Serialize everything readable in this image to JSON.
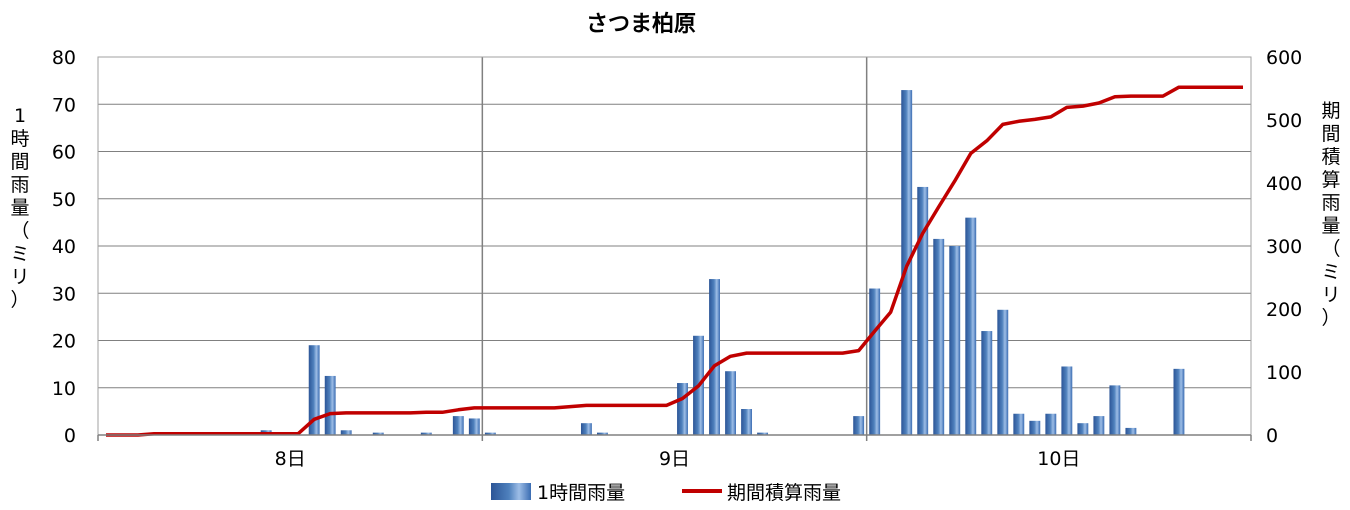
{
  "chart_data": {
    "type": "bar+line",
    "title": "さつま柏原",
    "ylabel_left": [
      "1",
      "時",
      "間",
      "雨",
      "量",
      "（",
      "ミ",
      "リ",
      "）"
    ],
    "ylabel_right": [
      "期",
      "間",
      "積",
      "算",
      "雨",
      "量",
      "（",
      "ミ",
      "リ",
      "）"
    ],
    "ylim_left": [
      0,
      80
    ],
    "ylim_right": [
      0,
      600
    ],
    "yticks_left": [
      "0",
      "10",
      "20",
      "30",
      "40",
      "50",
      "60",
      "70",
      "80"
    ],
    "yticks_right": [
      "0",
      "100",
      "200",
      "300",
      "400",
      "500",
      "600"
    ],
    "x_day_labels": [
      "8日",
      "9日",
      "10日"
    ],
    "hours_per_day": 24,
    "grid": true,
    "legend_position": "bottom",
    "colors": {
      "bar": "#4f81bd",
      "line": "#c00000",
      "grid": "#808080"
    },
    "series": [
      {
        "name": "1時間雨量",
        "type": "bar",
        "values": [
          0,
          0,
          0,
          0,
          0,
          0,
          0,
          0,
          0,
          0,
          1,
          0,
          0,
          19,
          12.5,
          1,
          0,
          0.5,
          0,
          0,
          0.5,
          0,
          4,
          3.5,
          0.5,
          0,
          0,
          0,
          0,
          0,
          2.5,
          0.5,
          0,
          0,
          0,
          0,
          11,
          21,
          33,
          13.5,
          5.5,
          0.5,
          0,
          0,
          0,
          0,
          0,
          4,
          31,
          0,
          73,
          52.5,
          41.5,
          40,
          46,
          22,
          26.5,
          4.5,
          3,
          4.5,
          14.5,
          2.5,
          4,
          10.5,
          1.5,
          0,
          0,
          14,
          0,
          0,
          0,
          0
        ]
      },
      {
        "name": "期間積算雨量",
        "type": "line",
        "values": [
          0,
          0,
          0,
          2,
          2,
          2,
          2,
          2,
          2,
          2,
          2,
          2,
          2,
          25,
          34,
          35,
          35,
          35,
          35,
          35,
          36,
          36,
          40,
          43,
          43,
          43,
          43,
          43,
          43,
          45,
          47,
          47,
          47,
          47,
          47,
          47,
          58,
          78,
          110,
          125,
          130,
          130,
          130,
          130,
          130,
          130,
          130,
          134,
          165,
          195,
          268,
          320,
          362,
          403,
          447,
          467,
          493,
          498,
          501,
          505,
          520,
          522,
          527,
          537,
          538,
          538,
          538,
          552,
          552,
          552,
          552,
          552
        ]
      }
    ]
  }
}
